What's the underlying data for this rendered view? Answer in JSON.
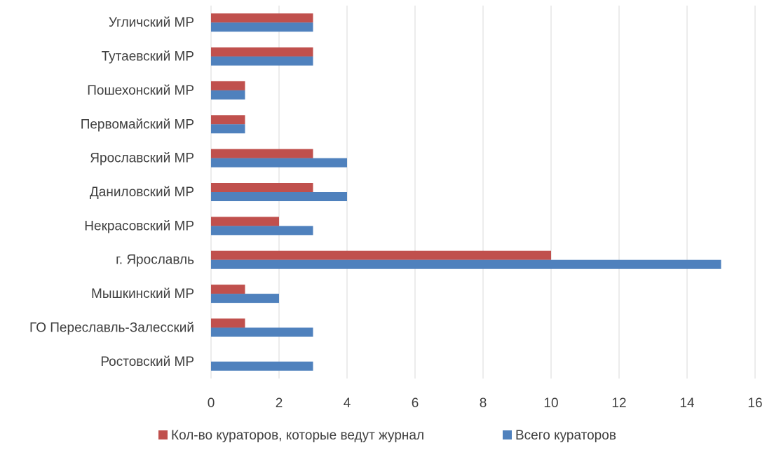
{
  "chart_data": {
    "type": "bar",
    "orientation": "horizontal",
    "categories": [
      "Угличский МР",
      "Тутаевский МР",
      "Пошехонский МР",
      "Первомайский МР",
      "Ярославский МР",
      "Даниловский МР",
      "Некрасовский МР",
      "г. Ярославль",
      "Мышкинский МР",
      "ГО Переславль-Залесский",
      "Ростовский МР"
    ],
    "series": [
      {
        "name": "Кол-во кураторов, которые ведут журнал",
        "color": "#c0504d",
        "values": [
          3,
          3,
          1,
          1,
          3,
          3,
          2,
          10,
          1,
          1,
          0
        ]
      },
      {
        "name": "Всего кураторов",
        "color": "#4f81bd",
        "values": [
          3,
          3,
          1,
          1,
          4,
          4,
          3,
          15,
          2,
          3,
          3
        ]
      }
    ],
    "xlim": [
      0,
      16
    ],
    "ticks": [
      "0",
      "2",
      "4",
      "6",
      "8",
      "10",
      "12",
      "14",
      "16"
    ],
    "grid": true,
    "legend": "bottom"
  }
}
